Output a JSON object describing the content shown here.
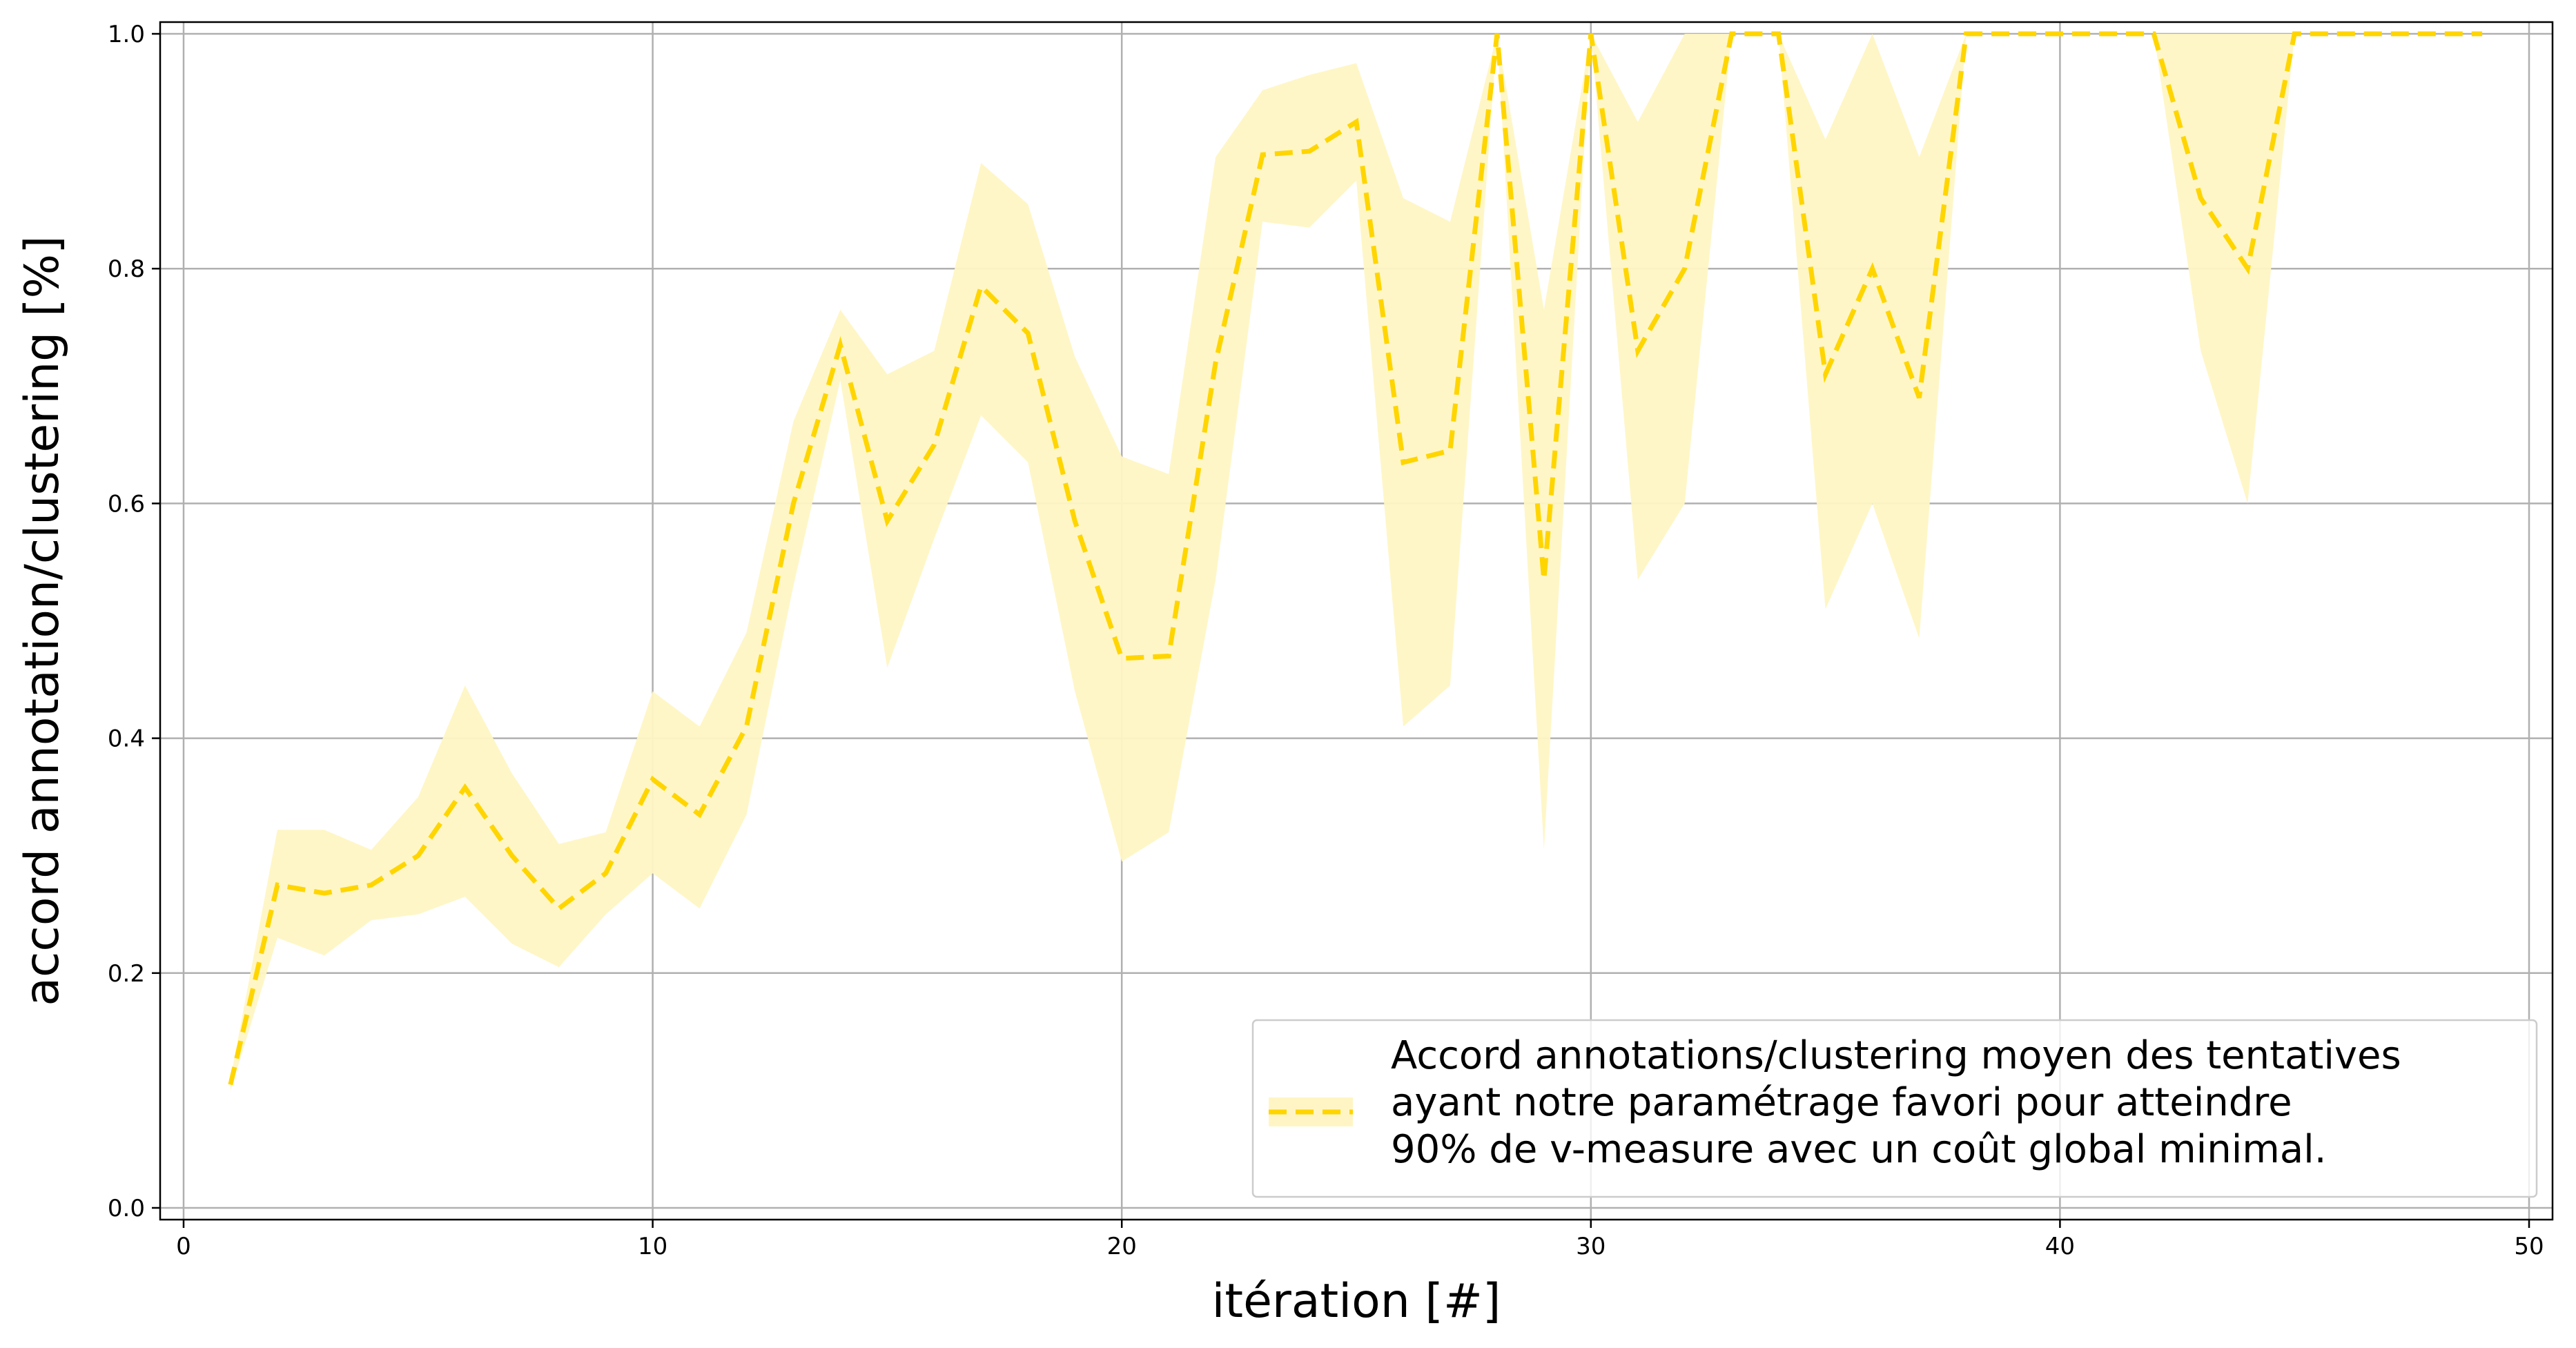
{
  "chart_data": {
    "type": "line",
    "xlabel": "itération [#]",
    "ylabel": "accord annotation/clustering [%]",
    "xlim": [
      -0.5,
      50.5
    ],
    "ylim": [
      -0.01,
      1.01
    ],
    "xticks": [
      0,
      10,
      20,
      30,
      40,
      50
    ],
    "yticks": [
      "0.0",
      "0.2",
      "0.4",
      "0.6",
      "0.8",
      "1.0"
    ],
    "grid": true,
    "legend_position": "bottom-right",
    "colors": {
      "line": "#ffd500",
      "band": "#fff5c4",
      "grid": "#b0b0b0"
    },
    "series": [
      {
        "name": "Accord annotations/clustering moyen des tentatives ayant notre paramétrage favori pour atteindre 90% de v-measure avec un coût global minimal.",
        "name_lines": [
          "Accord annotations/clustering moyen des tentatives",
          "ayant notre paramétrage favori pour atteindre",
          "90% de v-measure avec un coût global minimal."
        ],
        "style": "dashed",
        "x": [
          1,
          2,
          3,
          4,
          5,
          6,
          7,
          8,
          9,
          10,
          11,
          12,
          13,
          14,
          15,
          16,
          17,
          18,
          19,
          20,
          21,
          22,
          23,
          24,
          25,
          26,
          27,
          28,
          29,
          30,
          31,
          32,
          33,
          34,
          35,
          36,
          37,
          38,
          39,
          40,
          41,
          42,
          43,
          44,
          45,
          46,
          47,
          48,
          49
        ],
        "values": [
          0.105,
          0.275,
          0.268,
          0.275,
          0.3,
          0.358,
          0.3,
          0.255,
          0.285,
          0.365,
          0.335,
          0.41,
          0.6,
          0.735,
          0.585,
          0.65,
          0.785,
          0.745,
          0.585,
          0.468,
          0.47,
          0.72,
          0.897,
          0.9,
          0.925,
          0.635,
          0.645,
          1.0,
          0.535,
          1.0,
          0.73,
          0.8,
          1.0,
          1.0,
          0.71,
          0.8,
          0.69,
          1.0,
          1.0,
          1.0,
          1.0,
          1.0,
          0.86,
          0.8,
          1.0,
          1.0,
          1.0,
          1.0,
          1.0
        ],
        "lower": [
          0.1,
          0.23,
          0.215,
          0.245,
          0.25,
          0.265,
          0.225,
          0.205,
          0.25,
          0.285,
          0.255,
          0.335,
          0.53,
          0.705,
          0.46,
          0.57,
          0.675,
          0.635,
          0.44,
          0.295,
          0.32,
          0.535,
          0.84,
          0.835,
          0.875,
          0.41,
          0.445,
          1.0,
          0.305,
          1.0,
          0.535,
          0.6,
          1.0,
          1.0,
          0.51,
          0.6,
          0.485,
          1.0,
          1.0,
          1.0,
          1.0,
          1.0,
          0.73,
          0.6,
          1.0,
          1.0,
          1.0,
          1.0,
          1.0
        ],
        "upper": [
          0.11,
          0.322,
          0.322,
          0.305,
          0.35,
          0.445,
          0.37,
          0.31,
          0.32,
          0.44,
          0.41,
          0.49,
          0.67,
          0.765,
          0.71,
          0.73,
          0.89,
          0.855,
          0.725,
          0.64,
          0.625,
          0.895,
          0.952,
          0.965,
          0.975,
          0.86,
          0.84,
          1.0,
          0.765,
          1.0,
          0.925,
          1.0,
          1.0,
          1.0,
          0.91,
          1.0,
          0.895,
          1.0,
          1.0,
          1.0,
          1.0,
          1.0,
          1.0,
          1.0,
          1.0,
          1.0,
          1.0,
          1.0,
          1.0
        ]
      }
    ]
  }
}
